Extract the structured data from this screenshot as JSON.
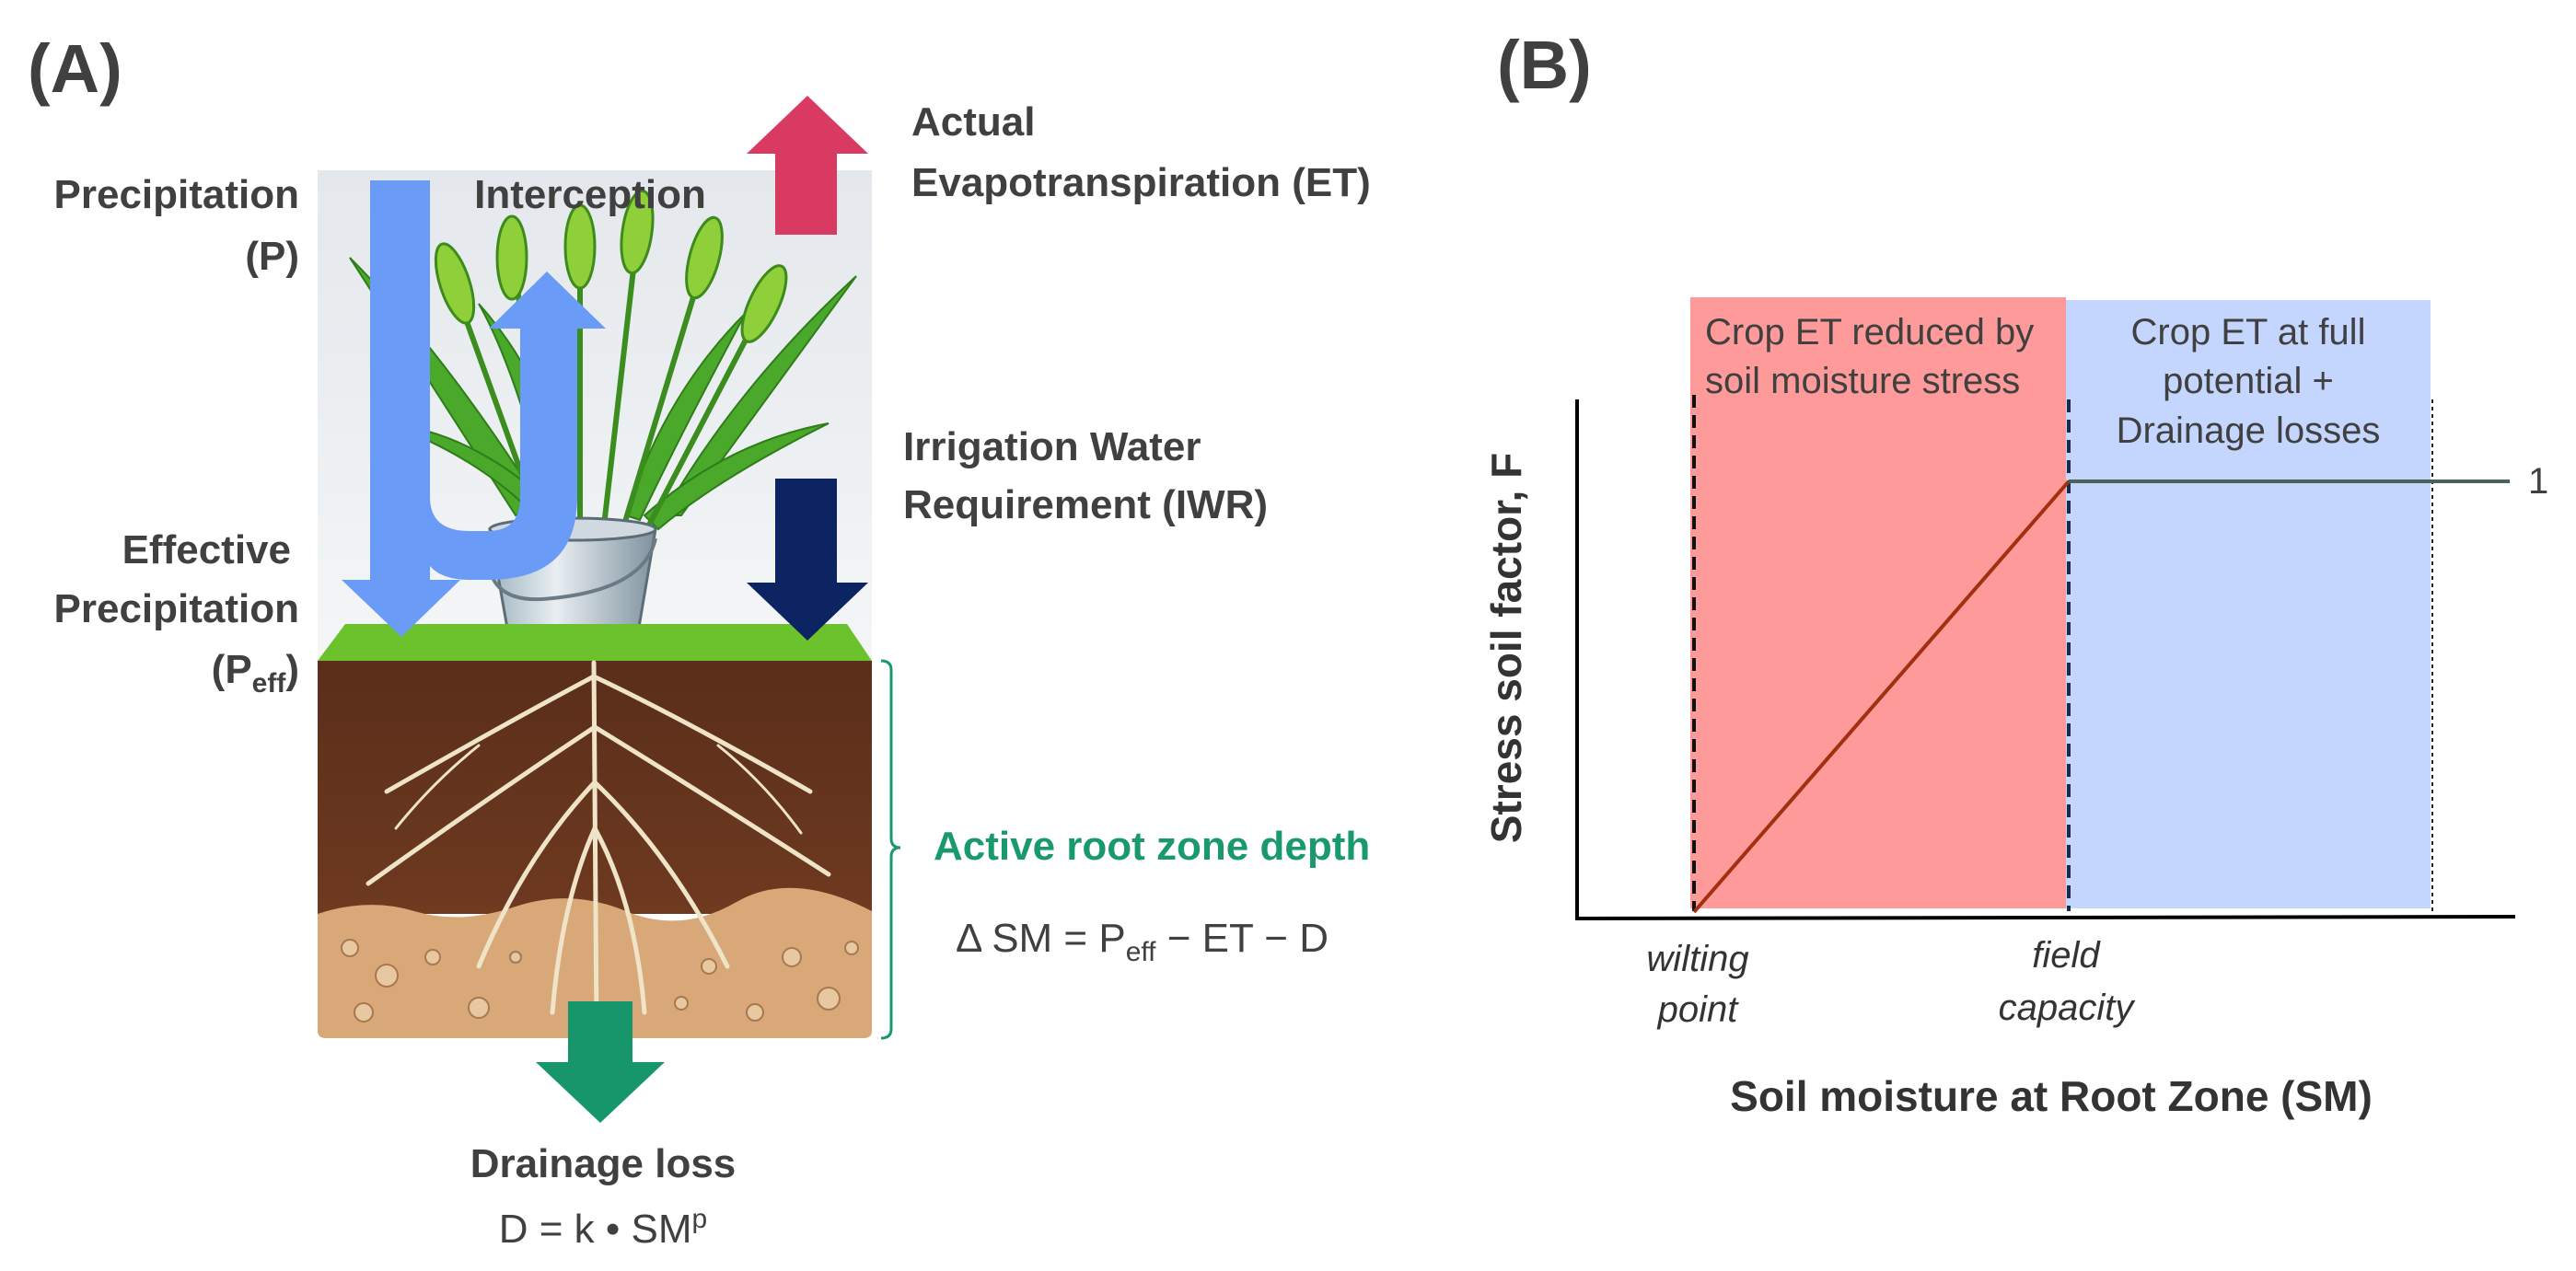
{
  "panel_a": {
    "label": "(A)",
    "precipitation": [
      "Precipitation",
      "(P)"
    ],
    "interception": "Interception",
    "actual_et": [
      "Actual",
      "Evapotranspiration (ET)"
    ],
    "irrigation": [
      "Irrigation Water",
      "Requirement (IWR)"
    ],
    "effective_precip": {
      "line1": "Effective",
      "line2": "Precipitation",
      "open": "(P",
      "sub": "eff",
      "close": ")"
    },
    "root_zone": "Active root zone depth",
    "water_balance": {
      "lhs": "Δ SM = P",
      "sub": "eff",
      "rhs": " − ET − D"
    },
    "drainage": {
      "label": "Drainage loss",
      "formula": "D = k • SM",
      "sup": "p"
    },
    "colors": {
      "precipitation_arrow": "#6a9cf7",
      "et_arrow": "#d93a62",
      "iwr_arrow": "#0c2461",
      "drainage_arrow": "#16966a",
      "root_zone_text": "#1a9a6c"
    }
  },
  "panel_b": {
    "label": "(B)",
    "chart_data": {
      "type": "line",
      "xlabel": "Soil moisture at Root Zone (SM)",
      "ylabel": "Stress soil factor, F",
      "x_ticks": [
        "wilting point",
        "field capacity"
      ],
      "y_ticks": [
        "1"
      ],
      "series": [
        {
          "points": [
            {
              "x": "wilting point",
              "y": 0
            },
            {
              "x": "field capacity",
              "y": 1
            },
            {
              "x": "beyond field capacity",
              "y": 1
            }
          ]
        }
      ],
      "regions": [
        {
          "text": [
            "Crop ET reduced by",
            "soil moisture stress"
          ],
          "color": "#ff9a9a",
          "from": "wilting point",
          "to": "field capacity"
        },
        {
          "text": [
            "Crop ET at full",
            "potential +",
            "Drainage losses"
          ],
          "color": "#c4d6fd",
          "from": "field capacity"
        }
      ],
      "grid": false,
      "legend": "none"
    }
  }
}
